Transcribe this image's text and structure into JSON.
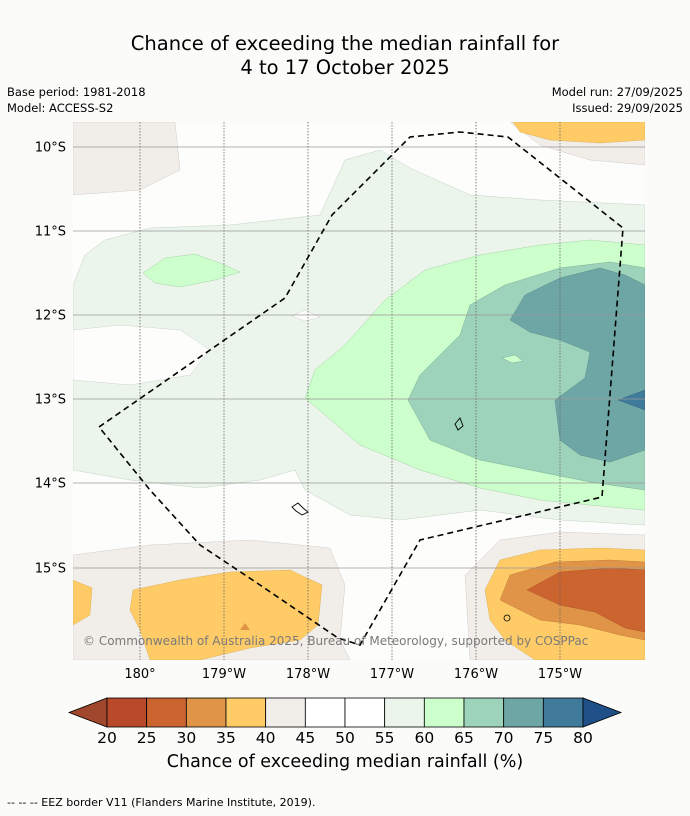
{
  "title": {
    "line1": "Chance of exceeding the median rainfall for",
    "line2": "4 to 17 October 2025"
  },
  "meta": {
    "base_period": "Base period: 1981-2018",
    "model": "Model: ACCESS-S2",
    "model_run": "Model run: 27/09/2025",
    "issued": "Issued: 29/09/2025"
  },
  "map": {
    "lat_labels": [
      "10°S",
      "11°S",
      "12°S",
      "13°S",
      "14°S",
      "15°S"
    ],
    "lon_labels": [
      "180°",
      "179°W",
      "178°W",
      "177°W",
      "176°W",
      "175°W"
    ],
    "copyright": "© Commonwealth of Australia 2025, Bureau of Meteorology, supported by COSPPac",
    "extent": {
      "lon_min": 179.2,
      "lon_max": -174.0,
      "lat_min": -16.1,
      "lat_max": -9.7
    }
  },
  "colorbar": {
    "labels": [
      "20",
      "25",
      "30",
      "35",
      "40",
      "45",
      "50",
      "55",
      "60",
      "65",
      "70",
      "75",
      "80"
    ],
    "under_color": "#a0472d",
    "over_color": "#1e4f86",
    "colors": [
      "#b84a2a",
      "#cc6430",
      "#e09448",
      "#ffcb66",
      "#f1ede9",
      "#ffffff",
      "#ffffff",
      "#ebf5eb",
      "#ccffcc",
      "#9ed3bb",
      "#6ea6a6",
      "#417b9c"
    ],
    "title": "Chance of exceeding median rainfall (%)"
  },
  "legend": {
    "eez": "--  --  -- EEZ border V11 (Flanders Marine Institute, 2019)."
  }
}
